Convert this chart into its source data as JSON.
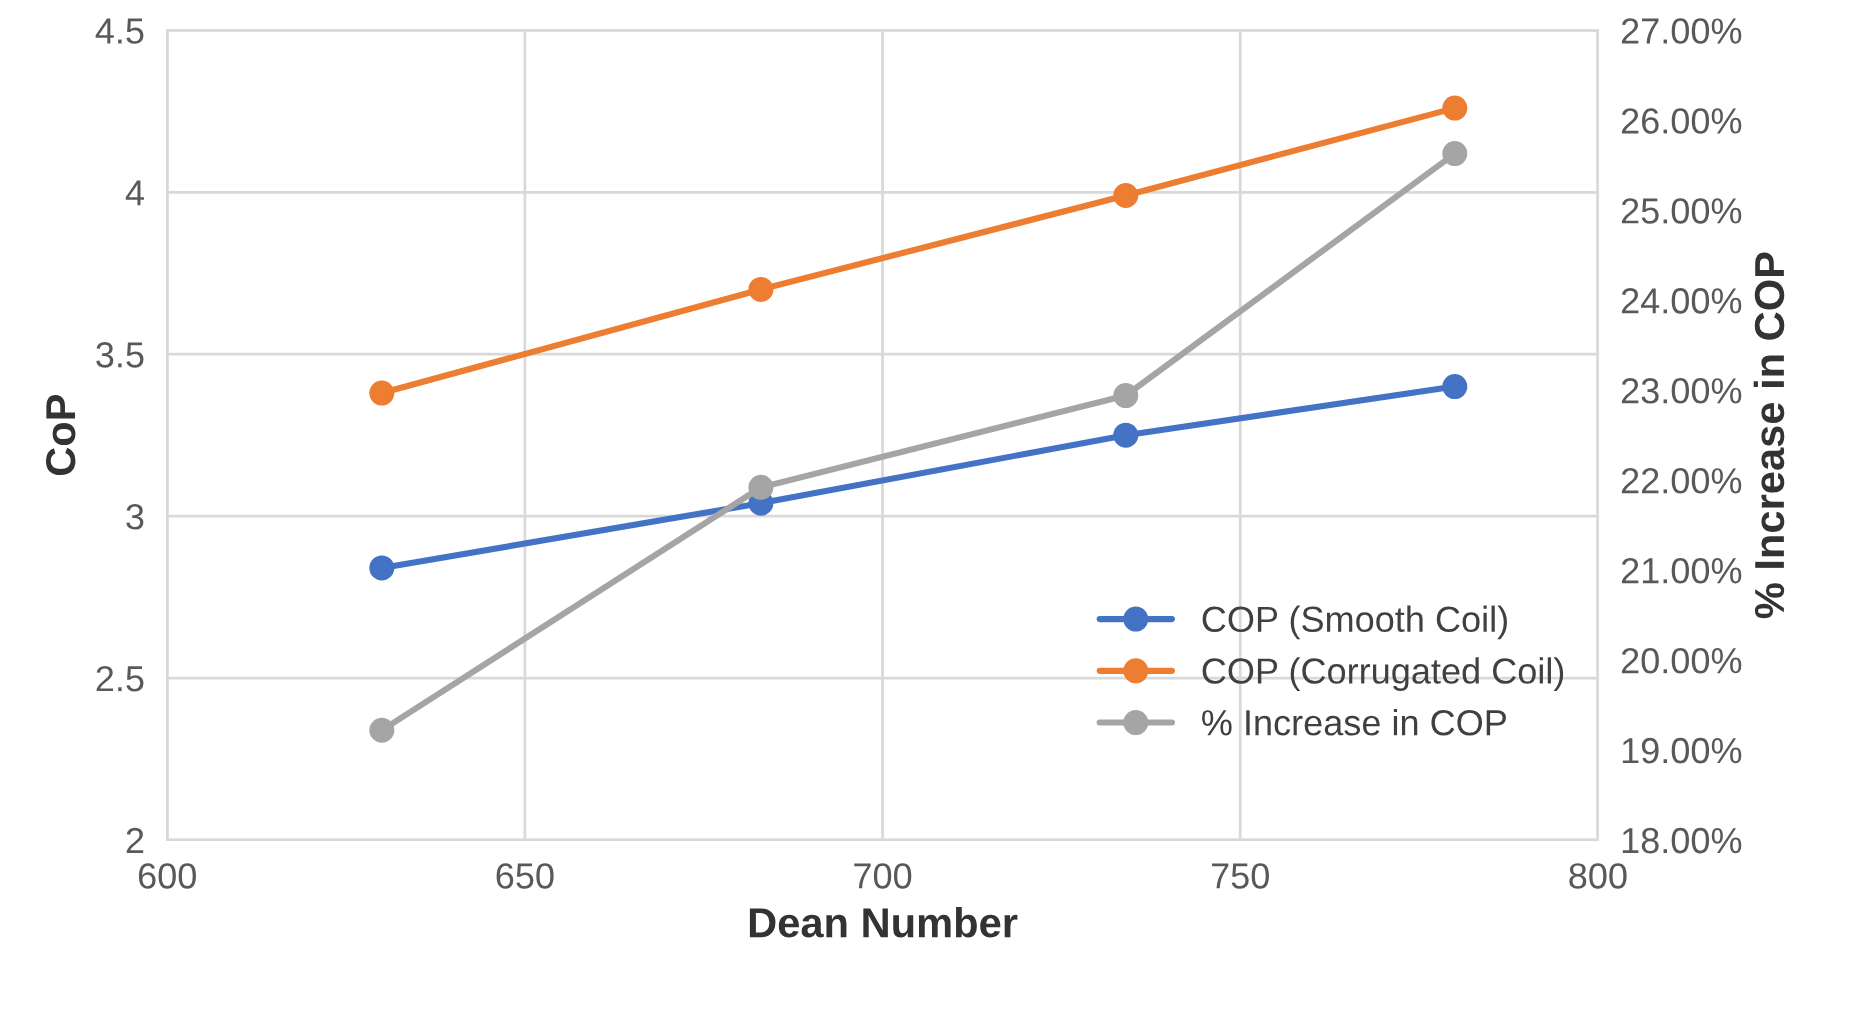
{
  "chart_data": {
    "type": "line",
    "xlabel": "Dean Number",
    "ylabel": "CoP",
    "y2label": "% Increase in COP",
    "x": [
      630,
      683,
      734,
      780
    ],
    "series": [
      {
        "name": "COP (Smooth Coil)",
        "color": "#4472c4",
        "values": [
          2.84,
          3.04,
          3.25,
          3.4
        ]
      },
      {
        "name": "COP (Corrugated Coil)",
        "color": "#ed7d31",
        "values": [
          3.38,
          3.7,
          3.99,
          4.26
        ]
      },
      {
        "name": "% Increase in COP",
        "color": "#a5a5a5",
        "axis": "y2",
        "values": [
          19.22,
          21.92,
          22.94,
          25.63
        ]
      }
    ],
    "xlim": [
      600,
      800
    ],
    "xticks": [
      600,
      650,
      700,
      750,
      800
    ],
    "ylim": [
      2,
      4.5
    ],
    "yticks": [
      2,
      2.5,
      3,
      3.5,
      4,
      4.5
    ],
    "y2lim": [
      18,
      27
    ],
    "y2ticks": [
      {
        "value": 18,
        "label": "18.00%"
      },
      {
        "value": 19,
        "label": "19.00%"
      },
      {
        "value": 20,
        "label": "20.00%"
      },
      {
        "value": 21,
        "label": "21.00%"
      },
      {
        "value": 22,
        "label": "22.00%"
      },
      {
        "value": 23,
        "label": "23.00%"
      },
      {
        "value": 24,
        "label": "24.00%"
      },
      {
        "value": 25,
        "label": "25.00%"
      },
      {
        "value": 26,
        "label": "26.00%"
      },
      {
        "value": 27,
        "label": "27.00%"
      }
    ],
    "grid": true,
    "legend": "bottom right",
    "marker": "circle",
    "line_style": "solid"
  }
}
